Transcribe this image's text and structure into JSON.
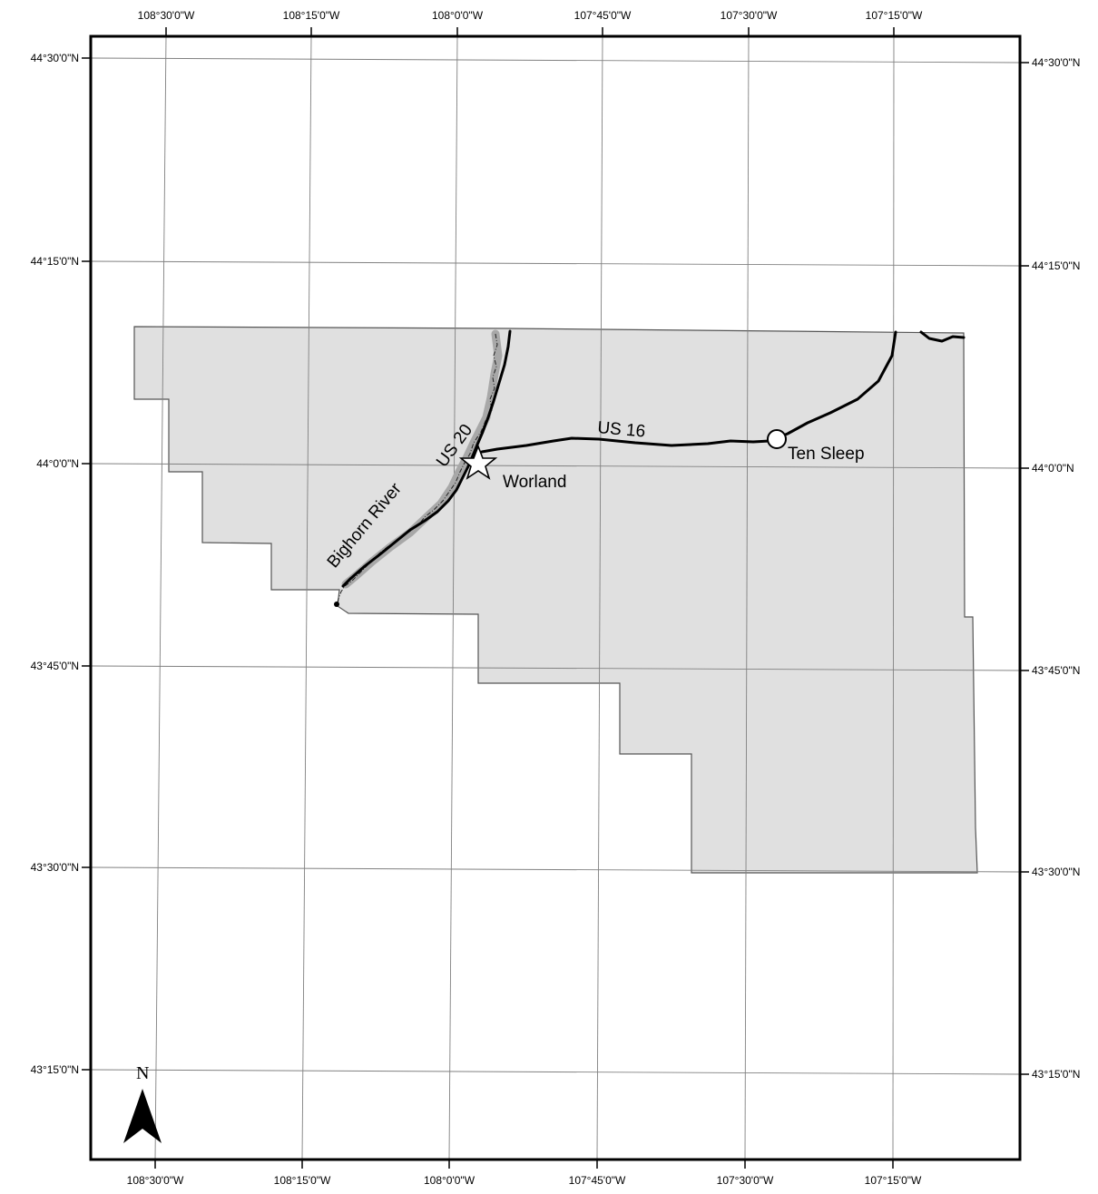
{
  "map": {
    "graticule": {
      "longitude_labels": [
        "108°30'0\"W",
        "108°15'0\"W",
        "108°0'0\"W",
        "107°45'0\"W",
        "107°30'0\"W",
        "107°15'0\"W"
      ],
      "latitude_labels": [
        "44°30'0\"N",
        "44°15'0\"N",
        "44°0'0\"N",
        "43°45'0\"N",
        "43°30'0\"N",
        "43°15'0\"N"
      ]
    },
    "county_fill": "#e0e0e0",
    "river": {
      "label": "Bighorn River",
      "color": "#a8a8a8"
    },
    "roads": [
      {
        "label": "US 20"
      },
      {
        "label": "US 16"
      }
    ],
    "places": [
      {
        "label": "Worland",
        "symbol": "star"
      },
      {
        "label": "Ten Sleep",
        "symbol": "circle"
      }
    ],
    "north_arrow": {
      "label": "N",
      "icon": "north-arrow-icon"
    }
  }
}
